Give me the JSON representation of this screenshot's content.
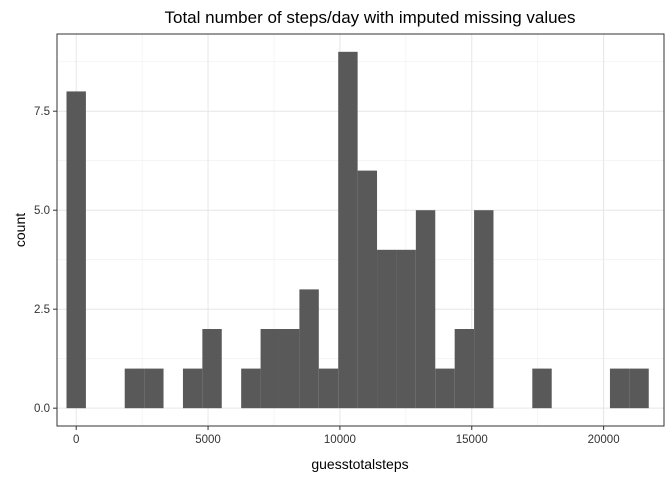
{
  "chart_data": {
    "type": "bar",
    "title": "Total number of steps/day with imputed missing values",
    "xlabel": "guesstotalsteps",
    "ylabel": "count",
    "x_ticks": [
      0,
      5000,
      10000,
      15000,
      20000
    ],
    "x_tick_labels": [
      "0",
      "5000",
      "10000",
      "15000",
      "20000"
    ],
    "y_ticks": [
      0,
      2.5,
      5,
      7.5
    ],
    "y_tick_labels": [
      "0.0",
      "2.5",
      "5.0",
      "7.5"
    ],
    "xlim": [
      -728,
      22290
    ],
    "ylim": [
      -0.45,
      9.45
    ],
    "grid": true,
    "bar_color": "#595959",
    "bins": [
      {
        "x0": -368,
        "x1": 368,
        "count": 8
      },
      {
        "x0": 368,
        "x1": 1104,
        "count": 0
      },
      {
        "x0": 1104,
        "x1": 1840,
        "count": 0
      },
      {
        "x0": 1840,
        "x1": 2576,
        "count": 1
      },
      {
        "x0": 2576,
        "x1": 3312,
        "count": 1
      },
      {
        "x0": 3312,
        "x1": 4048,
        "count": 0
      },
      {
        "x0": 4048,
        "x1": 4784,
        "count": 1
      },
      {
        "x0": 4784,
        "x1": 5520,
        "count": 2
      },
      {
        "x0": 5520,
        "x1": 6256,
        "count": 0
      },
      {
        "x0": 6256,
        "x1": 6992,
        "count": 1
      },
      {
        "x0": 6992,
        "x1": 7728,
        "count": 2
      },
      {
        "x0": 7728,
        "x1": 8464,
        "count": 2
      },
      {
        "x0": 8464,
        "x1": 9200,
        "count": 3
      },
      {
        "x0": 9200,
        "x1": 9936,
        "count": 1
      },
      {
        "x0": 9936,
        "x1": 10672,
        "count": 9
      },
      {
        "x0": 10672,
        "x1": 11408,
        "count": 6
      },
      {
        "x0": 11408,
        "x1": 12144,
        "count": 4
      },
      {
        "x0": 12144,
        "x1": 12880,
        "count": 4
      },
      {
        "x0": 12880,
        "x1": 13616,
        "count": 5
      },
      {
        "x0": 13616,
        "x1": 14352,
        "count": 1
      },
      {
        "x0": 14352,
        "x1": 15088,
        "count": 2
      },
      {
        "x0": 15088,
        "x1": 15824,
        "count": 5
      },
      {
        "x0": 15824,
        "x1": 16560,
        "count": 0
      },
      {
        "x0": 16560,
        "x1": 17296,
        "count": 0
      },
      {
        "x0": 17296,
        "x1": 18032,
        "count": 1
      },
      {
        "x0": 18032,
        "x1": 18768,
        "count": 0
      },
      {
        "x0": 18768,
        "x1": 19504,
        "count": 0
      },
      {
        "x0": 19504,
        "x1": 20240,
        "count": 0
      },
      {
        "x0": 20240,
        "x1": 20976,
        "count": 1
      },
      {
        "x0": 20976,
        "x1": 21712,
        "count": 1
      }
    ]
  }
}
